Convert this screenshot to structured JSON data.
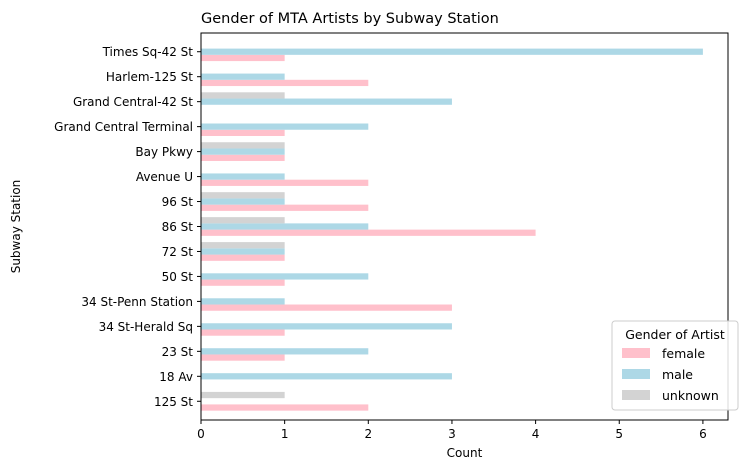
{
  "chart_data": {
    "type": "bar",
    "orientation": "horizontal",
    "title": "Gender of MTA Artists by Subway Station",
    "xlabel": "Count",
    "ylabel": "Subway Station",
    "xlim": [
      0,
      6.3
    ],
    "xticks": [
      0,
      1,
      2,
      3,
      4,
      5,
      6
    ],
    "grid": false,
    "legend_position": "bottom-right",
    "legend_title": "Gender of Artist",
    "categories": [
      "125 St",
      "18 Av",
      "23 St",
      "34 St-Herald Sq",
      "34 St-Penn Station",
      "50 St",
      "72 St",
      "86 St",
      "96 St",
      "Avenue U",
      "Bay Pkwy",
      "Grand Central Terminal",
      "Grand Central-42 St",
      "Harlem-125 St",
      "Times Sq-42 St"
    ],
    "series": [
      {
        "name": "female",
        "color": "#ffc0cb",
        "values": [
          2,
          0,
          1,
          1,
          3,
          1,
          1,
          4,
          2,
          2,
          1,
          1,
          0,
          2,
          1
        ]
      },
      {
        "name": "male",
        "color": "#add8e6",
        "values": [
          0,
          3,
          2,
          3,
          1,
          2,
          1,
          2,
          1,
          1,
          1,
          2,
          3,
          1,
          6
        ]
      },
      {
        "name": "unknown",
        "color": "#d3d3d3",
        "values": [
          1,
          0,
          0,
          0,
          0,
          0,
          1,
          1,
          1,
          0,
          1,
          0,
          1,
          0,
          0
        ]
      }
    ]
  }
}
